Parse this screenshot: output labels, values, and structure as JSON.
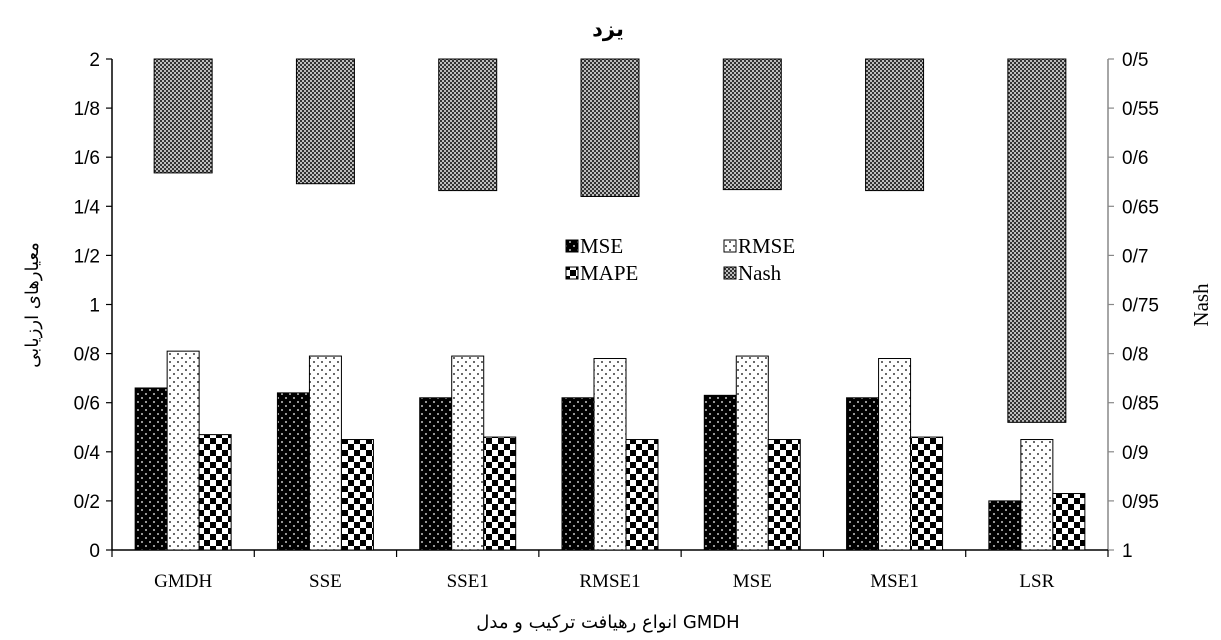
{
  "chart_data": {
    "type": "bar",
    "title": "یزد",
    "xlabel": "انواع رهیافت ترکیب و مدل GMDH",
    "ylabel": "معیارهای ارزیابی",
    "y2label": "Nash",
    "categories": [
      "GMDH",
      "SSE",
      "SSE1",
      "RMSE1",
      "MSE",
      "MSE1",
      "LSR"
    ],
    "ylim": [
      0,
      2
    ],
    "yticks": [
      "0",
      "0/2",
      "0/4",
      "0/6",
      "0/8",
      "1",
      "1/2",
      "1/4",
      "1/6",
      "1/8",
      "2"
    ],
    "y2lim": [
      0.5,
      1
    ],
    "y2_inverted": true,
    "y2ticks": [
      "0/5",
      "0/55",
      "0/6",
      "0/65",
      "0/7",
      "0/75",
      "0/8",
      "0/85",
      "0/9",
      "0/95",
      "1"
    ],
    "legend_position": "center",
    "series": [
      {
        "name": "MSE",
        "axis": "left",
        "pattern": "black-dots",
        "values": [
          0.66,
          0.64,
          0.62,
          0.62,
          0.63,
          0.62,
          0.2
        ]
      },
      {
        "name": "RMSE",
        "axis": "left",
        "pattern": "white-dots",
        "values": [
          0.81,
          0.79,
          0.79,
          0.78,
          0.79,
          0.78,
          0.45
        ]
      },
      {
        "name": "MAPE",
        "axis": "left",
        "pattern": "checker",
        "values": [
          0.47,
          0.45,
          0.46,
          0.45,
          0.45,
          0.46,
          0.23
        ]
      },
      {
        "name": "Nash",
        "axis": "right",
        "pattern": "fine-checker",
        "values": [
          0.616,
          0.627,
          0.634,
          0.64,
          0.633,
          0.634,
          0.87
        ]
      }
    ]
  }
}
